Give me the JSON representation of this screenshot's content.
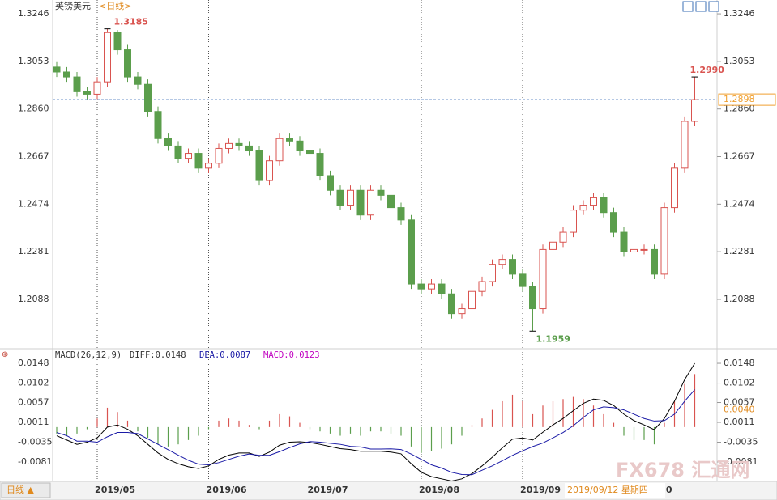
{
  "chart_data": {
    "type": "candlestick",
    "title": "英镑美元",
    "subtitle": "<日线>",
    "categories": [
      null,
      null,
      null,
      null,
      "2019/05",
      null,
      null,
      null,
      null,
      null,
      null,
      null,
      null,
      null,
      null,
      "2019/06",
      null,
      null,
      null,
      null,
      null,
      null,
      null,
      null,
      null,
      "2019/07",
      null,
      null,
      null,
      null,
      null,
      null,
      null,
      null,
      null,
      null,
      "2019/08",
      null,
      null,
      null,
      null,
      null,
      null,
      null,
      null,
      null,
      "2019/09",
      null,
      null,
      null,
      null,
      null,
      null,
      null,
      null,
      null,
      null,
      "0",
      null,
      null,
      null,
      null,
      null,
      null
    ],
    "open": [
      1.303,
      1.301,
      1.299,
      1.293,
      1.292,
      1.297,
      1.317,
      1.31,
      1.299,
      1.296,
      1.285,
      1.274,
      1.271,
      1.266,
      1.268,
      1.262,
      1.264,
      1.27,
      1.272,
      1.271,
      1.269,
      1.257,
      1.265,
      1.274,
      1.273,
      1.269,
      1.268,
      1.259,
      1.253,
      1.247,
      1.253,
      1.243,
      1.253,
      1.251,
      1.246,
      1.241,
      1.215,
      1.213,
      1.215,
      1.211,
      1.203,
      1.205,
      1.212,
      1.216,
      1.223,
      1.225,
      1.219,
      1.214,
      1.205,
      1.229,
      1.232,
      1.236,
      1.245,
      1.247,
      1.25,
      1.244,
      1.236,
      1.228,
      1.229,
      1.229,
      1.219,
      1.246,
      1.262,
      1.281
    ],
    "high": [
      1.305,
      1.303,
      1.301,
      1.295,
      1.299,
      1.3185,
      1.318,
      1.312,
      1.301,
      1.298,
      1.287,
      1.276,
      1.273,
      1.27,
      1.27,
      1.266,
      1.272,
      1.274,
      1.274,
      1.273,
      1.271,
      1.267,
      1.276,
      1.276,
      1.275,
      1.271,
      1.27,
      1.261,
      1.255,
      1.255,
      1.255,
      1.255,
      1.255,
      1.253,
      1.248,
      1.243,
      1.217,
      1.217,
      1.217,
      1.213,
      1.207,
      1.214,
      1.218,
      1.225,
      1.227,
      1.227,
      1.221,
      1.216,
      1.231,
      1.234,
      1.238,
      1.247,
      1.249,
      1.252,
      1.252,
      1.246,
      1.238,
      1.231,
      1.231,
      1.231,
      1.248,
      1.264,
      1.283,
      1.299
    ],
    "low": [
      1.299,
      1.297,
      1.291,
      1.29,
      1.29,
      1.295,
      1.308,
      1.297,
      1.294,
      1.283,
      1.272,
      1.269,
      1.264,
      1.264,
      1.26,
      1.26,
      1.262,
      1.268,
      1.269,
      1.267,
      1.255,
      1.255,
      1.263,
      1.271,
      1.267,
      1.266,
      1.257,
      1.251,
      1.245,
      1.245,
      1.241,
      1.241,
      1.249,
      1.244,
      1.239,
      1.213,
      1.211,
      1.211,
      1.209,
      1.201,
      1.201,
      1.203,
      1.21,
      1.214,
      1.221,
      1.217,
      1.212,
      1.1959,
      1.203,
      1.227,
      1.23,
      1.234,
      1.243,
      1.245,
      1.242,
      1.234,
      1.226,
      1.226,
      1.227,
      1.217,
      1.217,
      1.244,
      1.26,
      1.279
    ],
    "close": [
      1.301,
      1.299,
      1.293,
      1.292,
      1.297,
      1.317,
      1.31,
      1.299,
      1.296,
      1.285,
      1.274,
      1.271,
      1.266,
      1.268,
      1.262,
      1.264,
      1.27,
      1.272,
      1.271,
      1.269,
      1.257,
      1.265,
      1.274,
      1.273,
      1.269,
      1.268,
      1.259,
      1.253,
      1.247,
      1.253,
      1.243,
      1.253,
      1.251,
      1.246,
      1.241,
      1.215,
      1.213,
      1.215,
      1.211,
      1.203,
      1.205,
      1.212,
      1.216,
      1.223,
      1.225,
      1.219,
      1.214,
      1.205,
      1.229,
      1.232,
      1.236,
      1.245,
      1.247,
      1.25,
      1.244,
      1.236,
      1.228,
      1.229,
      1.229,
      1.219,
      1.246,
      1.262,
      1.281,
      1.2898
    ],
    "up_color": "#d9534f",
    "down_color": "#5b9e4c",
    "ylim": [
      1.1891,
      1.3302
    ],
    "yticks": [
      1.3246,
      1.3053,
      {
        "value": 1.286,
        "label": "1.2860"
      },
      1.2667,
      1.2474,
      1.2281,
      1.2088
    ],
    "last_price": 1.2898,
    "last_price_color": "#f0a030",
    "annotations": {
      "max_high": "1.3185",
      "min_low": "1.1959",
      "last_high": "1.2990"
    },
    "macd": {
      "title": "MACD(26,12,9)",
      "diff_label": "DIFF:0.0148",
      "dea_label": "DEA:0.0087",
      "macd_label": "MACD:0.0123",
      "ylim": [
        -0.0126,
        0.018
      ],
      "yticks": [
        0.0148,
        0.0102,
        0.0057,
        0.0011,
        -0.0035,
        -0.0081
      ],
      "marker": {
        "value": 0.004,
        "label": "0.0040"
      },
      "hist": [
        -0.0015,
        -0.002,
        -0.0015,
        -0.0005,
        0.002,
        0.0045,
        0.0035,
        0.0015,
        -0.001,
        -0.0025,
        -0.004,
        -0.0045,
        -0.004,
        -0.003,
        -0.002,
        -0.0005,
        0.0015,
        0.002,
        0.0015,
        0.0005,
        -0.0005,
        0.0015,
        0.003,
        0.0025,
        0.001,
        -0.0005,
        -0.001,
        -0.0015,
        -0.002,
        -0.0015,
        -0.002,
        -0.001,
        -0.001,
        -0.0015,
        -0.002,
        -0.0045,
        -0.006,
        -0.0055,
        -0.005,
        -0.004,
        -0.002,
        0.0005,
        0.002,
        0.004,
        0.006,
        0.0075,
        0.006,
        0.003,
        0.005,
        0.006,
        0.0065,
        0.007,
        0.0065,
        0.005,
        0.003,
        0.001,
        -0.002,
        -0.003,
        -0.003,
        -0.004,
        0.001,
        0.006,
        0.01,
        0.0123
      ],
      "diff": {
        "color": "#000000",
        "values": [
          -0.002,
          -0.003,
          -0.004,
          -0.0035,
          -0.0025,
          0.0,
          0.0005,
          -0.0005,
          -0.002,
          -0.004,
          -0.006,
          -0.0075,
          -0.0085,
          -0.0092,
          -0.0096,
          -0.009,
          -0.0075,
          -0.0065,
          -0.006,
          -0.006,
          -0.0068,
          -0.0058,
          -0.0042,
          -0.0035,
          -0.0034,
          -0.0036,
          -0.004,
          -0.0045,
          -0.005,
          -0.0052,
          -0.0056,
          -0.0056,
          -0.0056,
          -0.0058,
          -0.0062,
          -0.0085,
          -0.0105,
          -0.0115,
          -0.012,
          -0.0125,
          -0.012,
          -0.0108,
          -0.009,
          -0.007,
          -0.0048,
          -0.0028,
          -0.0025,
          -0.003,
          -0.0012,
          0.0005,
          0.002,
          0.0038,
          0.0055,
          0.0065,
          0.0062,
          0.005,
          0.003,
          0.0015,
          0.0005,
          -0.0006,
          0.002,
          0.006,
          0.011,
          0.0148
        ]
      },
      "dea": {
        "color": "#1a1aa6",
        "values": [
          -0.00125,
          -0.002,
          -0.00325,
          -0.00325,
          -0.0035,
          -0.00225,
          -0.00125,
          -0.00125,
          -0.0015,
          -0.00275,
          -0.004,
          -0.00525,
          -0.0065,
          -0.0077,
          -0.0086,
          -0.00875,
          -0.00825,
          -0.0075,
          -0.00675,
          -0.00625,
          -0.00655,
          -0.00655,
          -0.0057,
          -0.00475,
          -0.0039,
          -0.00335,
          -0.0035,
          -0.00375,
          -0.004,
          -0.00445,
          -0.0046,
          -0.0051,
          -0.0051,
          -0.00505,
          -0.0052,
          -0.00625,
          -0.0075,
          -0.00875,
          -0.0095,
          -0.0105,
          -0.011,
          -0.01105,
          -0.01,
          -0.009,
          -0.0078,
          -0.00655,
          -0.0055,
          -0.0045,
          -0.0037,
          -0.0025,
          -0.00125,
          0.0003,
          0.00225,
          0.004,
          0.0047,
          0.0045,
          0.004,
          0.003,
          0.002,
          0.0014,
          0.0015,
          0.003,
          0.006,
          0.0087
        ]
      }
    },
    "cursor_date": "2019/09/12 星期四",
    "period_button": "日线 ▲",
    "watermark": "FX678 汇通网"
  }
}
